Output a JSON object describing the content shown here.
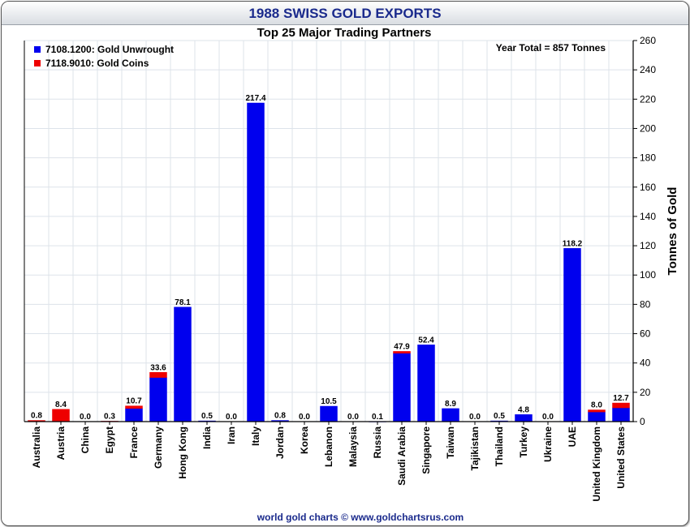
{
  "header": {
    "title": "1988 SWISS GOLD EXPORTS"
  },
  "footer": {
    "credit": "world gold charts © www.goldchartsrus.com"
  },
  "colors": {
    "unwrought": "#0000ee",
    "coins": "#ee0000",
    "title": "#1a2a8c",
    "grid": "#dde3ea"
  },
  "chart_data": {
    "type": "bar",
    "stacked": true,
    "title": "Top 25 Major Trading Partners",
    "annotation": "Year Total = 857 Tonnes",
    "ylabel": "Tonnes of Gold",
    "xlabel": "",
    "ylim": [
      0,
      260
    ],
    "yticks": [
      0,
      20,
      40,
      60,
      80,
      100,
      120,
      140,
      160,
      180,
      200,
      220,
      240,
      260
    ],
    "y_axis_side": "right",
    "grid": true,
    "legend_position": "top-left",
    "categories": [
      "Australia",
      "Austria",
      "China",
      "Egypt",
      "France",
      "Germany",
      "Hong Kong",
      "India",
      "Iran",
      "Italy",
      "Jordan",
      "Korea",
      "Lebanon",
      "Malaysia",
      "Russia",
      "Saudi Arabia",
      "Singapore",
      "Taiwan",
      "Tajikistan",
      "Thailand",
      "Turkey",
      "Ukraine",
      "UAE",
      "United Kingdom",
      "United States"
    ],
    "series": [
      {
        "name": "7108.1200: Gold Unwrought",
        "color": "#0000ee",
        "values": [
          0.2,
          0.3,
          0,
          0.2,
          9.0,
          30.1,
          78.1,
          0.5,
          0,
          217.4,
          0.8,
          0,
          10.5,
          0,
          0.1,
          46.7,
          52.4,
          8.9,
          0,
          0.5,
          4.8,
          0,
          118.2,
          6.6,
          9.4
        ]
      },
      {
        "name": "7118.9010: Gold Coins",
        "color": "#ee0000",
        "values": [
          0.6,
          8.1,
          0,
          0.1,
          1.7,
          3.5,
          0,
          0,
          0,
          0,
          0,
          0,
          0,
          0,
          0,
          1.2,
          0,
          0,
          0,
          0,
          0,
          0,
          0,
          1.4,
          3.3
        ]
      }
    ],
    "totals": [
      0.8,
      8.4,
      0.0,
      0.3,
      10.7,
      33.6,
      78.1,
      0.5,
      0.0,
      217.4,
      0.8,
      0.0,
      10.5,
      0.0,
      0.1,
      47.9,
      52.4,
      8.9,
      0.0,
      0.5,
      4.8,
      0.0,
      118.2,
      8.0,
      12.7
    ],
    "total_labels": [
      "0.8",
      "8.4",
      "0.0",
      "0.3",
      "10.7",
      "33.6",
      "78.1",
      "0.5",
      "0.0",
      "217.4",
      "0.8",
      "0.0",
      "10.5",
      "0.0",
      "0.1",
      "47.9",
      "52.4",
      "8.9",
      "0.0",
      "0.5",
      "4.8",
      "0.0",
      "118.2",
      "8.0",
      "12.7"
    ]
  }
}
